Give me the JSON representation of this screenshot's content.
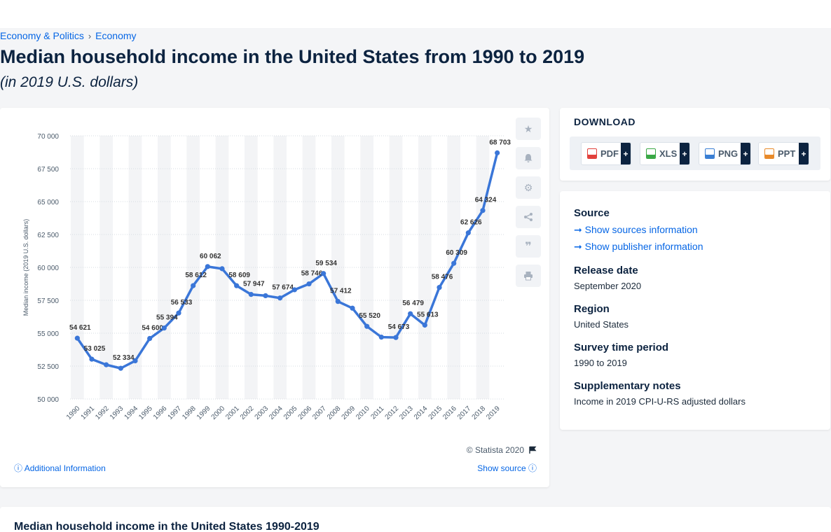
{
  "breadcrumb": {
    "item1": "Economy & Politics",
    "separator": "›",
    "item2": "Economy"
  },
  "title": "Median household income in the United States from 1990 to 2019",
  "subtitle": "(in 2019 U.S. dollars)",
  "chart_meta": {
    "copyright": "© Statista 2020",
    "additional_info": "Additional Information",
    "show_source": "Show source"
  },
  "toolbar": {
    "icons": [
      "star-icon",
      "bell-icon",
      "gear-icon",
      "share-icon",
      "quote-icon",
      "print-icon"
    ]
  },
  "download": {
    "title": "DOWNLOAD",
    "buttons": [
      {
        "label": "PDF",
        "plus": "+",
        "color": "#e2413c"
      },
      {
        "label": "XLS",
        "plus": "+",
        "color": "#3aa846"
      },
      {
        "label": "PNG",
        "plus": "+",
        "color": "#3a7fd4"
      },
      {
        "label": "PPT",
        "plus": "+",
        "color": "#e88a2a"
      }
    ]
  },
  "info": {
    "source_label": "Source",
    "show_sources": "Show sources information",
    "show_publisher": "Show publisher information",
    "release_label": "Release date",
    "release_value": "September 2020",
    "region_label": "Region",
    "region_value": "United States",
    "survey_label": "Survey time period",
    "survey_value": "1990 to 2019",
    "notes_label": "Supplementary notes",
    "notes_value": "Income in 2019 CPI-U-RS adjusted dollars"
  },
  "bottom": {
    "title": "Median household income in the United States 1990-2019"
  },
  "chart_data": {
    "type": "line",
    "title": "",
    "xlabel": "",
    "ylabel": "Median income (2019 U.S. dollars)",
    "ylim": [
      50000,
      70000
    ],
    "yticks": [
      "50 000",
      "52 500",
      "55 000",
      "57 500",
      "60 000",
      "62 500",
      "65 000",
      "67 500",
      "70 000"
    ],
    "ytick_values": [
      50000,
      52500,
      55000,
      57500,
      60000,
      62500,
      65000,
      67500,
      70000
    ],
    "grid": true,
    "line_color": "#3a76d8",
    "categories": [
      "1990",
      "1991",
      "1992",
      "1993",
      "1994",
      "1995",
      "1996",
      "1997",
      "1998",
      "1999",
      "2000",
      "2001",
      "2002",
      "2003",
      "2004",
      "2005",
      "2006",
      "2007",
      "2008",
      "2009",
      "2010",
      "2011",
      "2012",
      "2013",
      "2014",
      "2015",
      "2016",
      "2017",
      "2018",
      "2019"
    ],
    "values": [
      54621,
      53025,
      52600,
      52334,
      52900,
      54600,
      55394,
      56533,
      58612,
      60062,
      59900,
      58609,
      57947,
      57850,
      57674,
      58300,
      58746,
      59534,
      57412,
      56900,
      55520,
      54700,
      54673,
      56479,
      55613,
      58476,
      60309,
      62626,
      64324,
      68703
    ],
    "labels": [
      "54 621",
      "53 025",
      "",
      "52 334",
      "",
      "54 600",
      "55 394",
      "56 533",
      "58 612",
      "60 062",
      "",
      "58 609",
      "57 947",
      "",
      "57 674",
      "",
      "58 746",
      "59 534",
      "57 412",
      "",
      "55 520",
      "",
      "54 673",
      "56 479",
      "55 613",
      "58 476",
      "60 309",
      "62 626",
      "64 324",
      "68 703"
    ]
  }
}
